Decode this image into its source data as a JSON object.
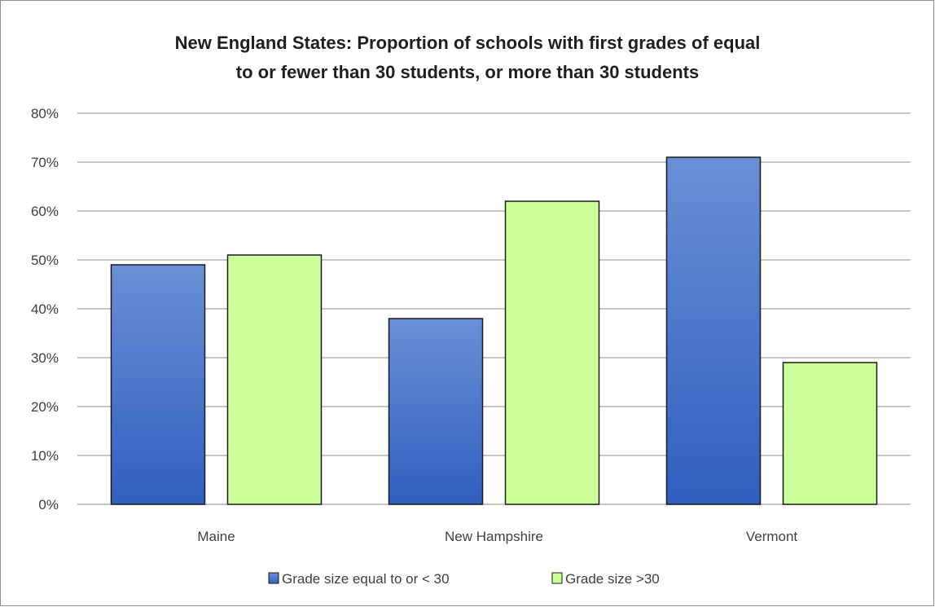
{
  "chart_data": {
    "type": "bar",
    "title_lines": [
      "New England States: Proportion of schools with first grades of equal",
      "to or fewer than 30 students, or more than 30 students"
    ],
    "categories": [
      "Maine",
      "New Hampshire",
      "Vermont"
    ],
    "series": [
      {
        "name": "Grade size equal to or < 30",
        "values": [
          49,
          38,
          71
        ],
        "color_top": "#6a8fd6",
        "color_bottom": "#2f5fbf",
        "stroke": "#1a1a1a"
      },
      {
        "name": "Grade size >30",
        "values": [
          51,
          62,
          29
        ],
        "color_top": "#ccff99",
        "color_bottom": "#ccff99",
        "stroke": "#1a1a1a"
      }
    ],
    "ylim": [
      0,
      80
    ],
    "yticks": [
      0,
      10,
      20,
      30,
      40,
      50,
      60,
      70,
      80
    ],
    "ytick_format": "percent",
    "grid": true,
    "legend_position": "bottom"
  }
}
